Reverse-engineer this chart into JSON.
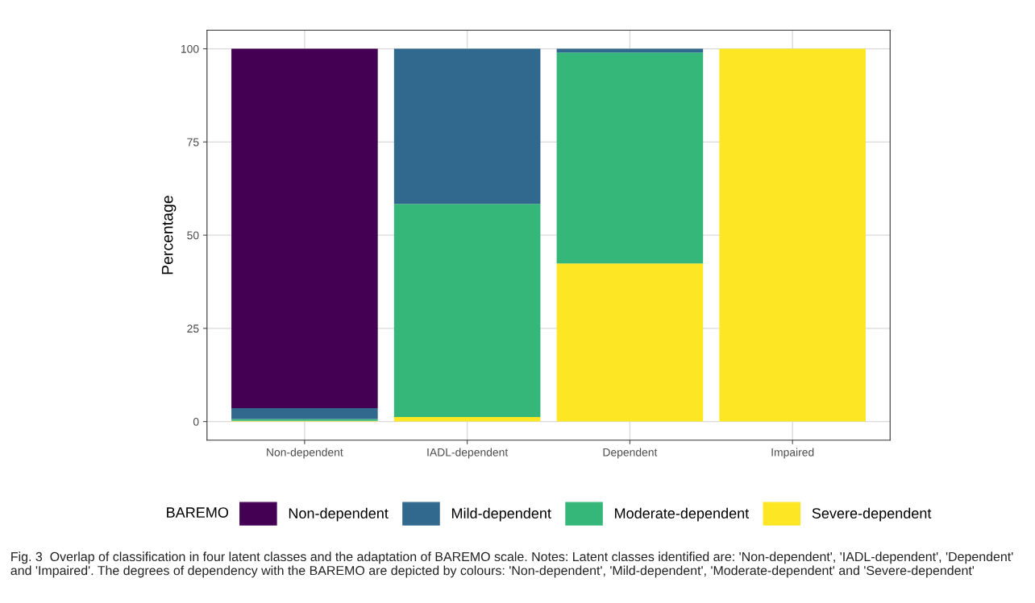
{
  "chart_data": {
    "type": "bar",
    "stacked": true,
    "ylabel": "Percentage",
    "legend_title": "BAREMO",
    "categories": [
      "Non-dependent",
      "IADL-dependent",
      "Dependent",
      "Impaired"
    ],
    "series": [
      {
        "name": "Severe-dependent",
        "color": "#fde725",
        "values": [
          0.2,
          1.2,
          42.4,
          100
        ]
      },
      {
        "name": "Moderate-dependent",
        "color": "#35b779",
        "values": [
          0.5,
          57.2,
          56.6,
          0
        ]
      },
      {
        "name": "Mild-dependent",
        "color": "#31688e",
        "values": [
          2.9,
          41.6,
          1.0,
          0
        ]
      },
      {
        "name": "Non-dependent",
        "color": "#440154",
        "values": [
          96.4,
          0,
          0,
          0
        ]
      }
    ],
    "ylim": [
      -5,
      105
    ],
    "yticks": [
      0,
      25,
      50,
      75,
      100
    ],
    "grid": true,
    "legend": "bottom",
    "annotations": [
      "Fig. 3  Overlap of classification in four latent classes and the adaptation of BAREMO scale. Notes: Latent classes identified are: 'Non-dependent', 'IADL-dependent', 'Dependent' and 'Impaired'. The degrees of dependency with the BAREMO are depicted by colours: 'Non-dependent', 'Mild-dependent', 'Moderate-dependent' and 'Severe-dependent'"
    ]
  }
}
